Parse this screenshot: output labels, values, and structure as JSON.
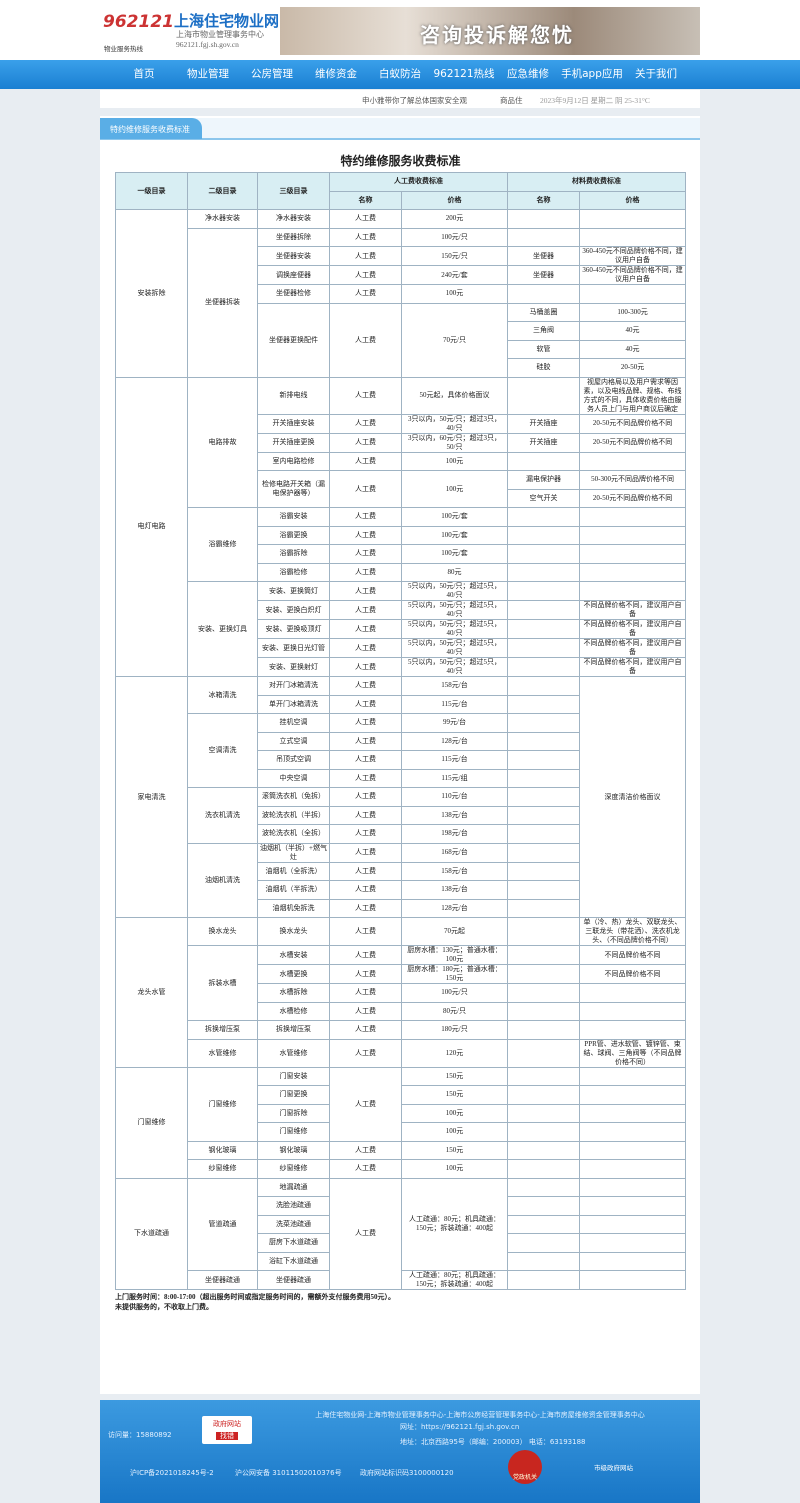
{
  "header": {
    "hotline": "962121",
    "hotline_caption": "物业服务热线",
    "site_name": "上海住宅物业网",
    "org": "上海市物业管理事务中心",
    "domain": "962121.fgj.sh.gov.cn",
    "banner": "咨询投诉解您忧"
  },
  "nav": [
    "首页",
    "物业管理",
    "公房管理",
    "维修资金",
    "白蚁防治",
    "962121热线",
    "应急维修",
    "手机app应用",
    "关于我们"
  ],
  "infobar": {
    "news": "申小雅带你了解总体国家安全观",
    "tag": "商品住",
    "date": "2023年9月12日 星期二 阴 25-31°C"
  },
  "section_tab": "特约维修服务收费标准",
  "table": {
    "title": "特约维修服务收费标准",
    "head": {
      "level1": "一级目录",
      "level2": "二级目录",
      "level3": "三级目录",
      "labor": "人工费收费标准",
      "material": "材料费收费标准",
      "labor_name": "名称",
      "labor_price": "价格",
      "material_name": "名称",
      "material_price": "价格"
    },
    "rows": [
      [
        "安装拆除",
        "净水器安装",
        "净水器安装",
        "人工费",
        "200元",
        null,
        null
      ],
      [
        "坐便器拆装",
        "坐便器拆除",
        "人工费",
        "100元/只",
        null,
        null
      ],
      [
        "坐便器安装",
        "人工费",
        "150元/只",
        "坐便器",
        "360-450元不同品牌价格不同，建议用户自备"
      ],
      [
        "调换座便器",
        "人工费",
        "240元/套",
        "坐便器",
        "360-450元不同品牌价格不同，建议用户自备"
      ],
      [
        "坐便器检修",
        "人工费",
        "100元",
        null,
        null
      ],
      [
        "坐便器更换配件",
        "人工费",
        "70元/只",
        "马桶盖圈",
        "100-300元"
      ],
      [
        "三角阀",
        "40元"
      ],
      [
        "软管",
        "40元"
      ],
      [
        "硅胶",
        "20-50元"
      ],
      [
        "电灯电路",
        "电路排故",
        "新排电线",
        "人工费",
        "50元起，具体价格面议",
        null,
        "视屋内格局以及用户需求等因素，以及电线品牌、规格、布线方式的不同，具体收费价格由服务人员上门与用户商议后确定"
      ],
      [
        "开关插座安装",
        "人工费",
        "3只以内，50元/只；超过3只，40/只",
        "开关插座",
        "20-50元不同品牌价格不同"
      ],
      [
        "开关插座更换",
        "人工费",
        "3只以内，60元/只；超过3只，50/只",
        "开关插座",
        "20-50元不同品牌价格不同"
      ],
      [
        "室内电路检修",
        "人工费",
        "100元",
        null,
        null
      ],
      [
        "检修电路开关箱（漏电保护器等）",
        "人工费",
        "100元",
        "漏电保护器",
        "50-300元不同品牌价格不同"
      ],
      [
        "空气开关",
        "20-50元不同品牌价格不同"
      ],
      [
        "浴霸维修",
        "浴霸安装",
        "人工费",
        "100元/套",
        null,
        null
      ],
      [
        "浴霸更换",
        "人工费",
        "100元/套",
        null,
        null
      ],
      [
        "浴霸拆除",
        "人工费",
        "100元/套",
        null,
        null
      ],
      [
        "浴霸检修",
        "人工费",
        "80元",
        null,
        null
      ],
      [
        "安装、更换灯具",
        "安装、更换筒灯",
        "人工费",
        "5只以内，50元/只；超过5只，40/只",
        null,
        null
      ],
      [
        "安装、更换白炽灯",
        "人工费",
        "5只以内，50元/只；超过5只，40/只",
        null,
        "不同品牌价格不同，建议用户自备"
      ],
      [
        "安装、更换吸顶灯",
        "人工费",
        "5只以内，50元/只；超过5只，40/只",
        null,
        "不同品牌价格不同，建议用户自备"
      ],
      [
        "安装、更换日光灯管",
        "人工费",
        "5只以内，50元/只；超过5只，40/只",
        null,
        "不同品牌价格不同，建议用户自备"
      ],
      [
        "安装、更换射灯",
        "人工费",
        "5只以内，50元/只；超过5只，40/只",
        null,
        "不同品牌价格不同，建议用户自备"
      ],
      [
        "家电清洗",
        "冰箱清洗",
        "对开门冰箱清洗",
        "人工费",
        "158元/台",
        null,
        "深度清洁价格面议"
      ],
      [
        "单开门冰箱清洗",
        "人工费",
        "115元/台",
        null
      ],
      [
        "空调清洗",
        "挂机空调",
        "人工费",
        "99元/台",
        null
      ],
      [
        "立式空调",
        "人工费",
        "128元/台",
        null
      ],
      [
        "吊顶式空调",
        "人工费",
        "115元/台",
        null
      ],
      [
        "中央空调",
        "人工费",
        "115元/组",
        null
      ],
      [
        "洗衣机清洗",
        "滚筒洗衣机（免拆）",
        "人工费",
        "110元/台",
        null
      ],
      [
        "波轮洗衣机（半拆）",
        "人工费",
        "138元/台",
        null
      ],
      [
        "波轮洗衣机（全拆）",
        "人工费",
        "198元/台",
        null
      ],
      [
        "油烟机清洗",
        "油烟机（半拆）+燃气灶",
        "人工费",
        "168元/台",
        null
      ],
      [
        "油烟机（全拆洗）",
        "人工费",
        "158元/台",
        null
      ],
      [
        "油烟机（半拆洗）",
        "人工费",
        "138元/台",
        null
      ],
      [
        "油烟机免拆洗",
        "人工费",
        "128元/台",
        null
      ],
      [
        "龙头水管",
        "换水龙头",
        "换水龙头",
        "人工费",
        "70元起",
        null,
        "单（冷、热）龙头、双联龙头、三联龙头（带花洒）、洗衣机龙头、（不同品牌价格不同）"
      ],
      [
        "拆装水槽",
        "水槽安装",
        "人工费",
        "厨房水槽：130元；普通水槽：100元",
        null,
        "不同品牌价格不同"
      ],
      [
        "水槽更换",
        "人工费",
        "厨房水槽：180元；普通水槽：150元",
        null,
        "不同品牌价格不同"
      ],
      [
        "水槽拆除",
        "人工费",
        "100元/只",
        null,
        null
      ],
      [
        "水槽检修",
        "人工费",
        "80元/只",
        null,
        null
      ],
      [
        "拆换增压泵",
        "拆换增压泵",
        "人工费",
        "180元/只",
        null,
        null
      ],
      [
        "水管维修",
        "水管维修",
        "人工费",
        "120元",
        null,
        "PPR管、进水软管、镀锌管、束结、球阀、三角阀等（不同品牌价格不同）"
      ],
      [
        "门窗维修",
        "门窗维修",
        "门窗安装",
        "人工费",
        "150元",
        null,
        null
      ],
      [
        "门窗更换",
        "150元",
        null,
        null
      ],
      [
        "门窗拆除",
        "100元",
        null,
        null
      ],
      [
        "门窗维修",
        "100元",
        null,
        null
      ],
      [
        "钢化玻璃",
        "钢化玻璃",
        "人工费",
        "150元",
        null,
        null
      ],
      [
        "纱窗维修",
        "纱窗维修",
        "人工费",
        "100元",
        null,
        null
      ],
      [
        "下水道疏通",
        "管道疏通",
        "地漏疏通",
        "人工费",
        "人工疏通：80元；机具疏通：150元；拆装疏通：400起",
        null,
        null
      ],
      [
        "洗脸池疏通",
        null,
        null
      ],
      [
        "洗菜池疏通",
        null,
        null
      ],
      [
        "厨房下水道疏通",
        null,
        null
      ],
      [
        "浴缸下水道疏通",
        null,
        null
      ],
      [
        "坐便器疏通",
        "坐便器疏通",
        "人工疏通：80元；机具疏通：150元；拆装疏通：400起",
        null,
        null
      ]
    ],
    "notes": [
      "上门服务时间：8:00-17:00（超出服务时间或指定服务时间的，需额外支付服务费用50元）。",
      "未提供服务的，不收取上门费。"
    ]
  },
  "footer": {
    "orgs": "上海住宅物业网-上海市物业管理事务中心-上海市公房经营管理事务中心-上海市房屋维修资金管理事务中心",
    "url": "网址：https://962121.fgj.sh.gov.cn",
    "address": "地址：北京西路95号（邮编：200003） 电话：63193188",
    "visits": "访问量：15880892",
    "find_error": "政府网站",
    "find_error_btn": "找错",
    "icp": "沪ICP备2021018245号-2",
    "police": "沪公网安备 31011502010376号",
    "site_code": "政府网站标识码3100000120",
    "badge1": "党政机关",
    "badge2": "市级政府网站"
  }
}
